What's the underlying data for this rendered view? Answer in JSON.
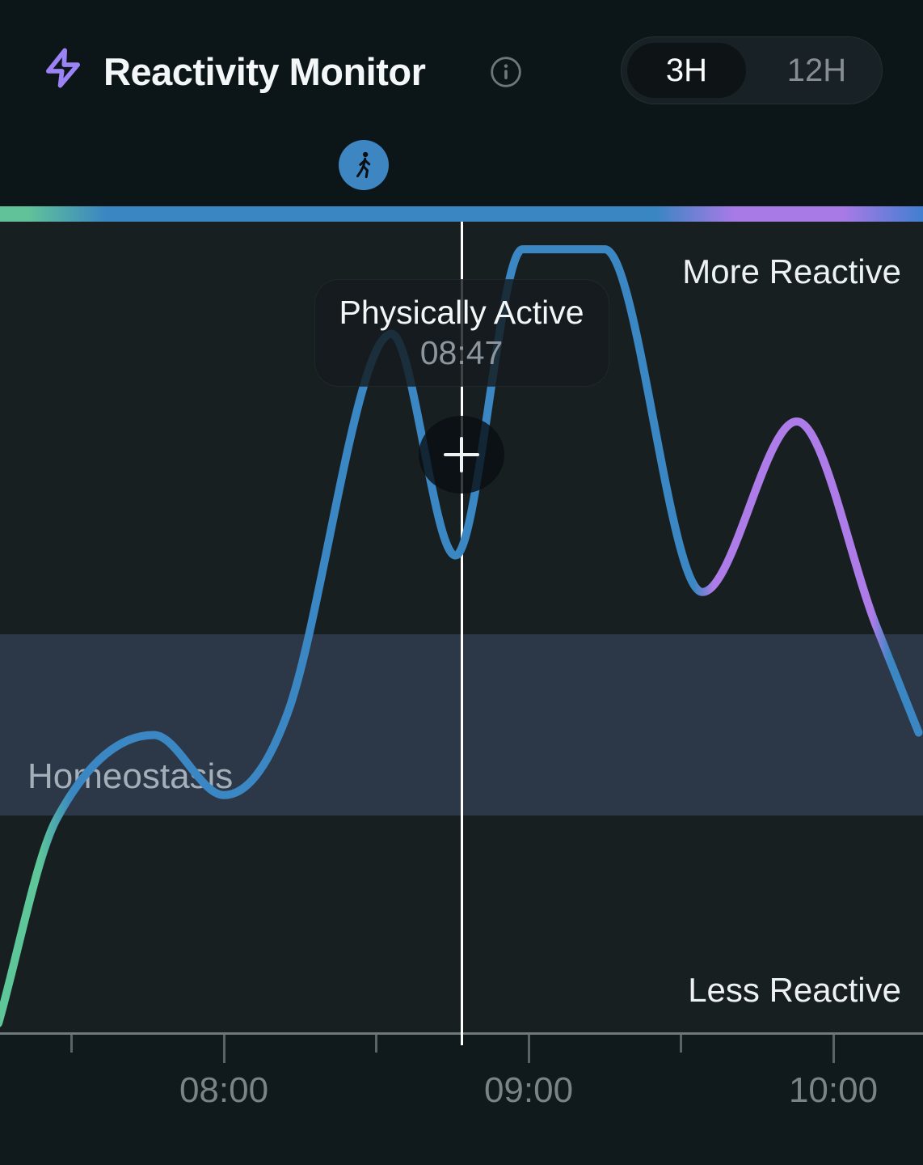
{
  "header": {
    "title": "Reactivity Monitor",
    "icons": {
      "bolt": "lightning-bolt",
      "info": "info-circle",
      "activity_marker": "walking-person",
      "add": "plus"
    },
    "range_toggle": {
      "options": [
        "3H",
        "12H"
      ],
      "selected": "3H"
    }
  },
  "colors": {
    "header_bg": "#0c1518",
    "chart_bg": "#181f21",
    "footer_bg": "#101a1c",
    "band_bg": "#2c3747",
    "accent_blue": "#3a87c3",
    "accent_green": "#5ec79a",
    "accent_purple": "#ad7ce8",
    "cursor": "#ffffff",
    "bolt": "#9b82f5",
    "walker_circle": "#3e86c2",
    "axis": "#6f787b",
    "tick": "#5a6366",
    "tick_label": "#7a8486"
  },
  "chart_data": {
    "type": "line",
    "title": "Reactivity Monitor",
    "x_axis": {
      "range_hours": [
        7.25,
        10.28
      ],
      "major_ticks": [
        {
          "t": 8,
          "label": "08:00"
        },
        {
          "t": 9,
          "label": "09:00"
        },
        {
          "t": 10,
          "label": "10:00"
        }
      ],
      "minor_ticks": [
        7.5,
        8.5,
        9.5
      ]
    },
    "y_axis": {
      "min": 0,
      "max": 100,
      "top_label": "More Reactive",
      "bottom_label": "Less Reactive"
    },
    "band": {
      "label": "Homeostasis",
      "v_range": [
        26.8,
        49.1
      ]
    },
    "cursor": {
      "t": 8.78,
      "time_label": "08:47",
      "event_label": "Physically Active"
    },
    "series": [
      {
        "name": "reactivity",
        "points": [
          {
            "t": 7.26,
            "v": 1.2,
            "kind": "start"
          },
          {
            "t": 7.45,
            "v": 26.3,
            "kind": "through"
          },
          {
            "t": 7.77,
            "v": 36.7,
            "kind": "max"
          },
          {
            "t": 8.0,
            "v": 29.3,
            "kind": "min"
          },
          {
            "t": 8.21,
            "v": 39.5,
            "kind": "through"
          },
          {
            "t": 8.55,
            "v": 86.1,
            "kind": "max"
          },
          {
            "t": 8.76,
            "v": 58.8,
            "kind": "min"
          },
          {
            "t": 8.98,
            "v": 96.5,
            "kind": "max"
          },
          {
            "t": 9.25,
            "v": 96.5,
            "kind": "plateau"
          },
          {
            "t": 9.57,
            "v": 54.3,
            "kind": "min"
          },
          {
            "t": 9.88,
            "v": 75.3,
            "kind": "max"
          },
          {
            "t": 10.14,
            "v": 50.2,
            "kind": "through"
          },
          {
            "t": 10.28,
            "v": 37.0,
            "kind": "end"
          }
        ],
        "color_segments": [
          {
            "until_t": 7.42,
            "color": "#5ec79a"
          },
          {
            "until_t": 9.55,
            "color": "#3a87c3"
          },
          {
            "until_t": 10.12,
            "color": "#ad7ce8"
          },
          {
            "until_t": 10.3,
            "color": "#3a87c3"
          }
        ]
      }
    ],
    "line_gradient_stops": [
      [
        0,
        "#5ec79a"
      ],
      [
        0.042,
        "#5ec79a"
      ],
      [
        0.078,
        "#3a87c3"
      ],
      [
        0.752,
        "#3a87c3"
      ],
      [
        0.773,
        "#ad7ce8"
      ],
      [
        0.945,
        "#ad7ce8"
      ],
      [
        0.964,
        "#3a87c3"
      ],
      [
        1,
        "#3a87c3"
      ]
    ],
    "bar_gradient_stops": [
      [
        0,
        "#61c299"
      ],
      [
        0.03,
        "#61c299"
      ],
      [
        0.115,
        "#3a86c2"
      ],
      [
        0.71,
        "#3a86c2"
      ],
      [
        0.795,
        "#a77ae6"
      ],
      [
        0.915,
        "#a77ae6"
      ],
      [
        1,
        "#417fd0"
      ]
    ]
  }
}
